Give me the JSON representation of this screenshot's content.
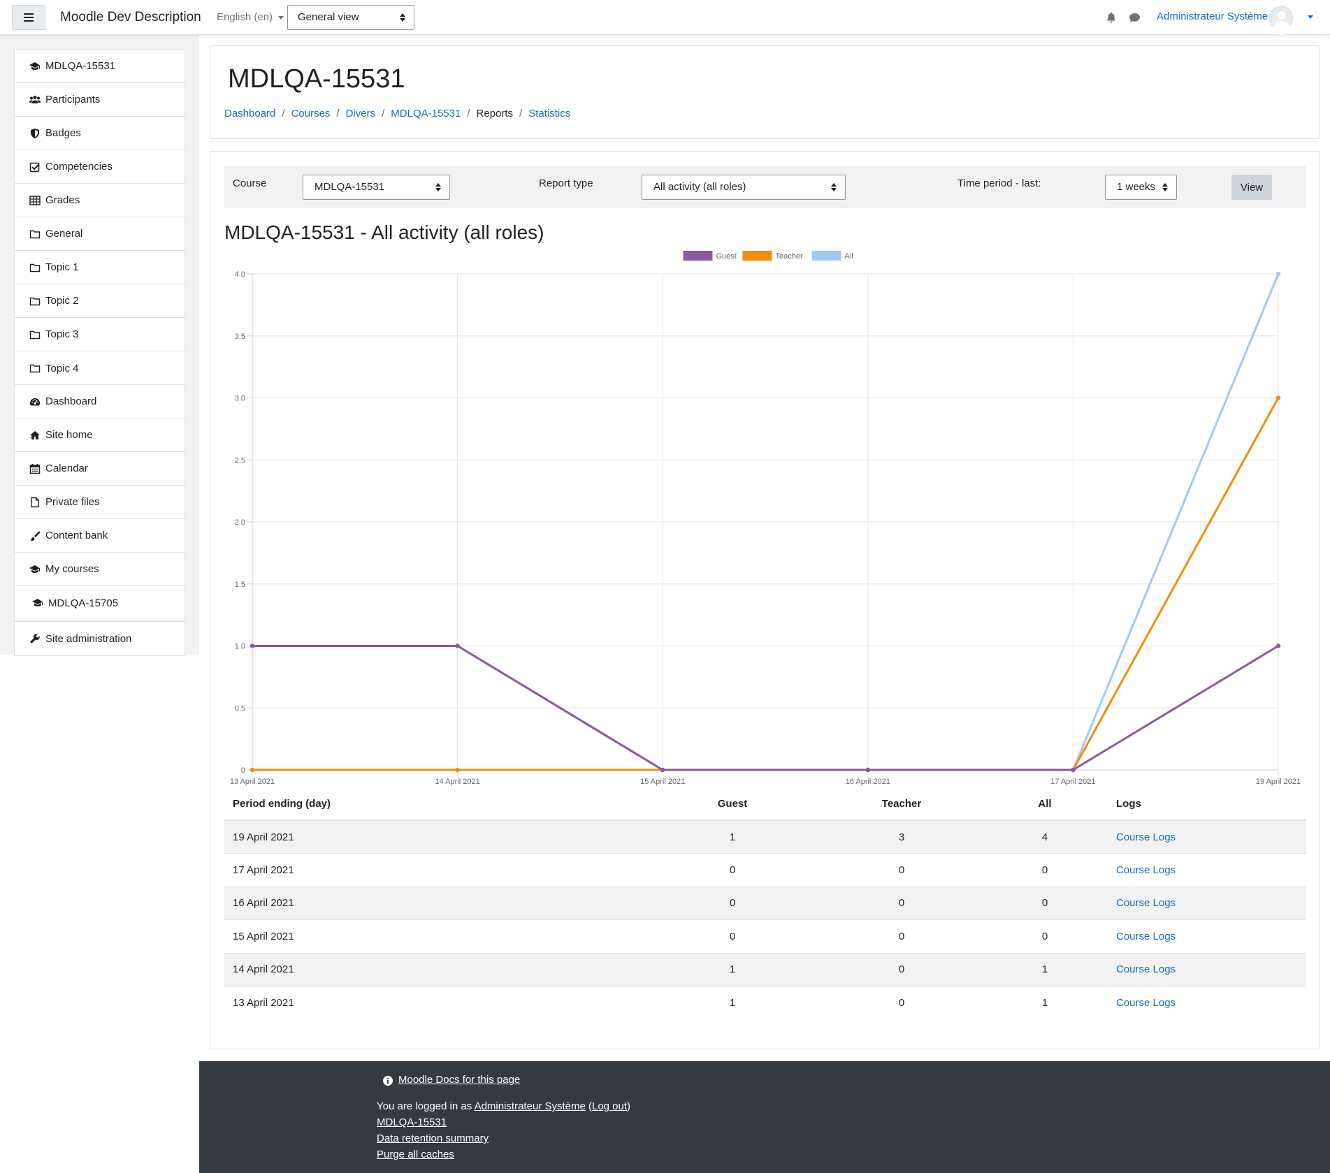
{
  "navbar": {
    "site_name": "Moodle Dev Description",
    "language": "English (en)",
    "view_mode": "General view",
    "user_name": "Administrateur Système"
  },
  "drawer": {
    "course_items": [
      {
        "label": "MDLQA-15531",
        "icon": "graduation-cap-icon"
      },
      {
        "label": "Participants",
        "icon": "users-icon"
      },
      {
        "label": "Badges",
        "icon": "shield-icon"
      },
      {
        "label": "Competencies",
        "icon": "check-square-icon"
      },
      {
        "label": "Grades",
        "icon": "table-icon"
      },
      {
        "label": "General",
        "icon": "folder-icon"
      },
      {
        "label": "Topic 1",
        "icon": "folder-icon"
      },
      {
        "label": "Topic 2",
        "icon": "folder-icon"
      },
      {
        "label": "Topic 3",
        "icon": "folder-icon"
      },
      {
        "label": "Topic 4",
        "icon": "folder-icon"
      }
    ],
    "site_items": [
      {
        "label": "Dashboard",
        "icon": "dashboard-icon"
      },
      {
        "label": "Site home",
        "icon": "home-icon"
      },
      {
        "label": "Calendar",
        "icon": "calendar-icon"
      },
      {
        "label": "Private files",
        "icon": "file-icon"
      },
      {
        "label": "Content bank",
        "icon": "paint-brush-icon"
      },
      {
        "label": "My courses",
        "icon": "graduation-cap-icon"
      },
      {
        "label": "MDLQA-15705",
        "icon": "graduation-cap-icon"
      }
    ],
    "admin_item": {
      "label": "Site administration",
      "icon": "wrench-icon"
    }
  },
  "header": {
    "title": "MDLQA-15531",
    "breadcrumb": [
      "Dashboard",
      "Courses",
      "Divers",
      "MDLQA-15531",
      "Reports",
      "Statistics"
    ]
  },
  "filters": {
    "course_label": "Course",
    "course_value": "MDLQA-15531",
    "report_type_label": "Report type",
    "report_type_value": "All activity (all roles)",
    "time_period_label": "Time period - last:",
    "time_period_value": "1 weeks",
    "view_button": "View"
  },
  "report_title": "MDLQA-15531 - All activity (all roles)",
  "chart_data": {
    "type": "line",
    "title": "",
    "xlabel": "",
    "ylabel": "",
    "categories": [
      "13 April 2021",
      "14 April 2021",
      "15 April 2021",
      "16 April 2021",
      "17 April 2021",
      "19 April 2021"
    ],
    "series": [
      {
        "name": "Guest",
        "color": "#8a5a9c",
        "values": [
          1,
          1,
          0,
          0,
          0,
          1
        ]
      },
      {
        "name": "Teacher",
        "color": "#f38d0c",
        "values": [
          0,
          0,
          0,
          0,
          0,
          3
        ]
      },
      {
        "name": "All",
        "color": "#a4c9ef",
        "values": [
          1,
          1,
          0,
          0,
          0,
          4
        ]
      }
    ],
    "ylim": [
      0,
      4
    ],
    "yticks": [
      "0",
      "0.5",
      "1.0",
      "1.5",
      "2.0",
      "2.5",
      "3.0",
      "3.5",
      "4.0"
    ],
    "grid": true,
    "legend": "top-center"
  },
  "table": {
    "headers": [
      "Period ending (day)",
      "Guest",
      "Teacher",
      "All",
      "Logs"
    ],
    "rows": [
      {
        "period": "19 April 2021",
        "guest": "1",
        "teacher": "3",
        "all": "4",
        "logs": "Course Logs"
      },
      {
        "period": "17 April 2021",
        "guest": "0",
        "teacher": "0",
        "all": "0",
        "logs": "Course Logs"
      },
      {
        "period": "16 April 2021",
        "guest": "0",
        "teacher": "0",
        "all": "0",
        "logs": "Course Logs"
      },
      {
        "period": "15 April 2021",
        "guest": "0",
        "teacher": "0",
        "all": "0",
        "logs": "Course Logs"
      },
      {
        "period": "14 April 2021",
        "guest": "1",
        "teacher": "0",
        "all": "1",
        "logs": "Course Logs"
      },
      {
        "period": "13 April 2021",
        "guest": "1",
        "teacher": "0",
        "all": "1",
        "logs": "Course Logs"
      }
    ]
  },
  "footer": {
    "docs_link": "Moodle Docs for this page",
    "logged_in_prefix": "You are logged in as ",
    "logged_in_user": "Administrateur Système",
    "logout_open": " (",
    "logout": "Log out",
    "logout_close": ")",
    "course_link": "MDLQA-15531",
    "data_retention": "Data retention summary",
    "purge_caches": "Purge all caches"
  }
}
